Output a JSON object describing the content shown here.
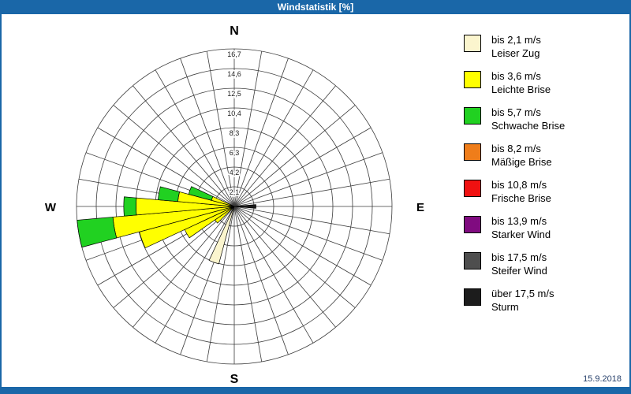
{
  "window": {
    "title": "Windstatistik [%]",
    "date": "15.9.2018"
  },
  "colors": {
    "titlebar": "#1A67A8",
    "grid": "#3C3C3C",
    "background": "#FFFFFF"
  },
  "legend": {
    "items": [
      {
        "speed": "bis 2,1 m/s",
        "name": "Leiser Zug",
        "color": "#FBF5CE"
      },
      {
        "speed": "bis 3,6 m/s",
        "name": "Leichte Brise",
        "color": "#FFFF00"
      },
      {
        "speed": "bis 5,7 m/s",
        "name": "Schwache Brise",
        "color": "#21D121"
      },
      {
        "speed": "bis 8,2 m/s",
        "name": "Mäßige Brise",
        "color": "#EF7D1A"
      },
      {
        "speed": "bis 10,8 m/s",
        "name": "Frische Brise",
        "color": "#F01111"
      },
      {
        "speed": "bis 13,9 m/s",
        "name": "Starker Wind",
        "color": "#800B80"
      },
      {
        "speed": "bis 17,5 m/s",
        "name": "Steifer Wind",
        "color": "#4E4E4E"
      },
      {
        "speed": "über 17,5 m/s",
        "name": "Sturm",
        "color": "#1C1C1C"
      }
    ]
  },
  "chart_data": {
    "type": "wind-rose",
    "title": "Windstatistik [%]",
    "units": "%",
    "compass_labels": {
      "n": "N",
      "e": "E",
      "s": "S",
      "w": "W"
    },
    "ring_values": [
      2.1,
      4.2,
      6.3,
      8.3,
      10.4,
      12.5,
      14.6,
      16.7
    ],
    "ring_labels": [
      "2,1",
      "4,2",
      "6,3",
      "8,3",
      "10,4",
      "12,5",
      "14,6",
      "16,7"
    ],
    "max_value": 16.7,
    "spokes_deg": 10,
    "sector_width_deg": 10,
    "speed_class_names": [
      "bis 2,1 m/s Leiser Zug",
      "bis 3,6 m/s Leichte Brise",
      "bis 5,7 m/s Schwache Brise",
      "bis 8,2 m/s Mäßige Brise",
      "bis 10,8 m/s Frische Brise",
      "bis 13,9 m/s Starker Wind",
      "bis 17,5 m/s Steifer Wind",
      "über 17,5 m/s Sturm"
    ],
    "bars": [
      {
        "direction_deg": 200,
        "segments": [
          {
            "class_index": 0,
            "value": 6.3
          }
        ]
      },
      {
        "direction_deg": 230,
        "segments": [
          {
            "class_index": 1,
            "value": 2.5
          }
        ]
      },
      {
        "direction_deg": 240,
        "segments": [
          {
            "class_index": 1,
            "value": 5.8
          }
        ]
      },
      {
        "direction_deg": 250,
        "segments": [
          {
            "class_index": 1,
            "value": 10.4
          }
        ]
      },
      {
        "direction_deg": 260,
        "segments": [
          {
            "class_index": 1,
            "value": 12.9
          },
          {
            "class_index": 2,
            "value": 3.8
          }
        ]
      },
      {
        "direction_deg": 270,
        "segments": [
          {
            "class_index": 1,
            "value": 10.4
          },
          {
            "class_index": 2,
            "value": 1.3
          }
        ]
      },
      {
        "direction_deg": 280,
        "segments": [
          {
            "class_index": 1,
            "value": 6.0
          },
          {
            "class_index": 2,
            "value": 2.1
          }
        ]
      },
      {
        "direction_deg": 290,
        "segments": [
          {
            "class_index": 1,
            "value": 2.5
          },
          {
            "class_index": 2,
            "value": 2.5
          }
        ]
      },
      {
        "direction_deg": 90,
        "segments": [
          {
            "class_index": 7,
            "value": 2.3
          }
        ]
      }
    ]
  }
}
